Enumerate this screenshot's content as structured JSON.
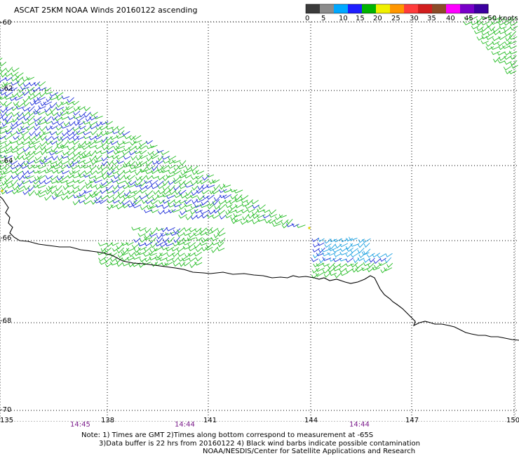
{
  "title": "ASCAT 25KM NOAA Winds 20160122 ascending",
  "colorbar": {
    "labels": [
      "0",
      "5",
      "10",
      "15",
      "20",
      "25",
      "30",
      "35",
      "40",
      "45",
      ">50 knots"
    ],
    "colors": [
      "#3b3b3b",
      "#8c8c8c",
      "#00a8ff",
      "#1e1eff",
      "#00b400",
      "#f0f000",
      "#ff9600",
      "#ff3c3c",
      "#d21e1e",
      "#8c4b28",
      "#ff00ff",
      "#7800c8",
      "#3c00a0"
    ]
  },
  "lat_labels": [
    "-60",
    "-62",
    "-64",
    "-66",
    "-68",
    "-70"
  ],
  "lon_labels": [
    "135",
    "138",
    "141",
    "144",
    "147",
    "150"
  ],
  "time_labels": [
    "14:45",
    "14:44",
    "14:44"
  ],
  "notes": {
    "line1": "Note: 1) Times are GMT 2)Times along bottom correspond to measurement at -65S",
    "line2": "3)Data buffer is 22 hrs from 20160122 4) Black wind barbs indicate possible contamination",
    "line3": "NOAA/NESDIS/Center for Satellite Applications and Research"
  },
  "barb_colors": {
    "green": "#22bb22",
    "blue": "#1a2ad8",
    "cyan": "#1aa0e0",
    "yellow": "#e0d000"
  },
  "coast_color": "#000000"
}
